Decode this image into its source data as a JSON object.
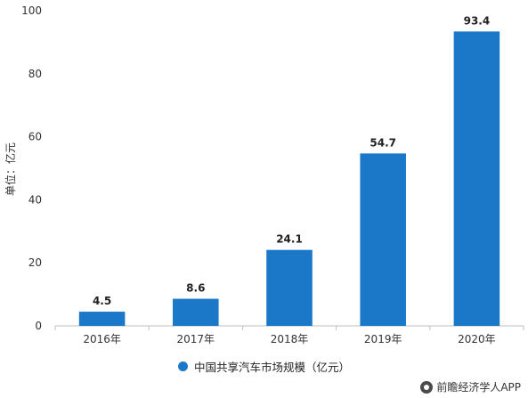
{
  "chart_data": {
    "type": "bar",
    "categories": [
      "2016年",
      "2017年",
      "2018年",
      "2019年",
      "2020年"
    ],
    "series": [
      {
        "name": "中国共享汽车市场规模（亿元）",
        "values": [
          4.5,
          8.6,
          24.1,
          54.7,
          93.4
        ]
      }
    ],
    "data_labels": [
      "4.5",
      "8.6",
      "24.1",
      "54.7",
      "93.4"
    ],
    "ylabel": "单位：亿元",
    "xlabel": "",
    "ylim": [
      0,
      100
    ],
    "yticks": [
      0,
      20,
      40,
      60,
      80,
      100
    ],
    "grid": false,
    "legend_position": "bottom",
    "bar_color": "#1b77c8"
  },
  "legend": {
    "label": "中国共享汽车市场规模（亿元）"
  },
  "watermark": {
    "text": "前瞻经济学人APP"
  }
}
